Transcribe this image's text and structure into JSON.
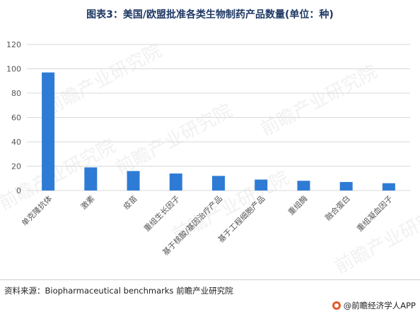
{
  "page": {
    "title": "图表3：美国/欧盟批准各类生物制药产品数量(单位：种)",
    "source": "资料来源：Biopharmaceutical benchmarks 前瞻产业研究院",
    "brand": "@前瞻经济学人APP",
    "watermark": "前瞻产业研究院"
  },
  "colors": {
    "bar": "#2e7bd6",
    "axis_text": "#555555",
    "grid": "#d9d9d9",
    "title": "#1f3864"
  },
  "chart_data": {
    "type": "bar",
    "categories": [
      "单克隆抗体",
      "激素",
      "疫苗",
      "重组生长因子",
      "基于核酸/基因治疗产品",
      "基于工程细胞产品",
      "重组酶",
      "融合蛋白",
      "重组凝血因子"
    ],
    "values": [
      97,
      19,
      16,
      14,
      12,
      9,
      8,
      7,
      6
    ],
    "ylim": [
      0,
      120
    ],
    "yticks": [
      "0",
      "20",
      "40",
      "60",
      "80",
      "100",
      "120"
    ],
    "grid": true,
    "xlabel": "",
    "ylabel": ""
  }
}
